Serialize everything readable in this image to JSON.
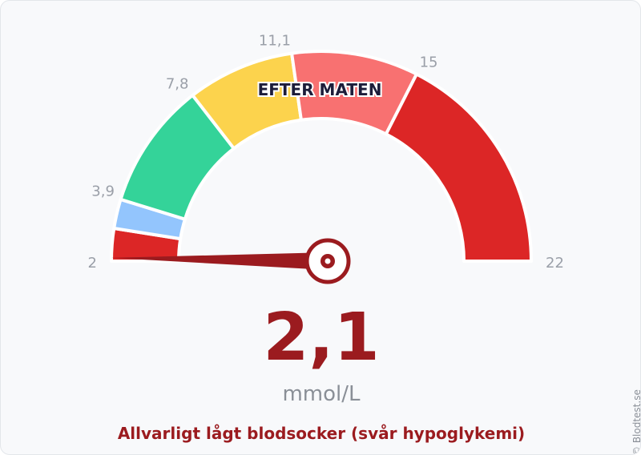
{
  "chart_data": {
    "type": "gauge",
    "min": 2,
    "max": 22,
    "value": 2.1,
    "value_label": "2,1",
    "unit": "mmol/L",
    "zone_label": "EFTER MATEN",
    "status": "Allvarligt lågt blodsocker (svår hypoglykemi)",
    "bands": [
      {
        "from": 2,
        "to": 3,
        "color": "#dc2626"
      },
      {
        "from": 3,
        "to": 3.9,
        "color": "#93c5fd"
      },
      {
        "from": 3.9,
        "to": 7.8,
        "color": "#34d399"
      },
      {
        "from": 7.8,
        "to": 11.1,
        "color": "#fcd34d"
      },
      {
        "from": 11.1,
        "to": 15,
        "color": "#f87171"
      },
      {
        "from": 15,
        "to": 22,
        "color": "#dc2626"
      }
    ],
    "ticks": [
      {
        "value": 2,
        "label": "2"
      },
      {
        "value": 3.9,
        "label": "3,9"
      },
      {
        "value": 7.8,
        "label": "7,8"
      },
      {
        "value": 11.1,
        "label": "11,1"
      },
      {
        "value": 15,
        "label": "15"
      },
      {
        "value": 22,
        "label": "22"
      }
    ],
    "needle_color": "#9b1b1f"
  },
  "copyright": "© Blodtest.se"
}
